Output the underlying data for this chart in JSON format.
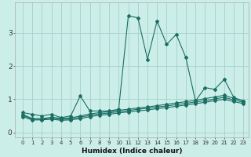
{
  "xlabel": "Humidex (Indice chaleur)",
  "bg_color": "#cceee8",
  "grid_color": "#aad4ce",
  "line_color": "#1a6e64",
  "x": [
    0,
    1,
    2,
    3,
    4,
    5,
    6,
    7,
    8,
    9,
    10,
    11,
    12,
    13,
    14,
    15,
    16,
    17,
    18,
    19,
    20,
    21,
    22,
    23
  ],
  "series1": [
    0.6,
    0.55,
    0.5,
    0.55,
    0.45,
    0.5,
    1.1,
    0.65,
    0.65,
    0.65,
    0.7,
    3.5,
    3.45,
    2.2,
    3.35,
    2.65,
    2.95,
    2.25,
    0.95,
    1.35,
    1.3,
    1.6,
    1.05,
    0.95
  ],
  "series2": [
    0.55,
    0.42,
    0.42,
    0.46,
    0.43,
    0.44,
    0.5,
    0.56,
    0.6,
    0.63,
    0.67,
    0.7,
    0.74,
    0.77,
    0.81,
    0.85,
    0.89,
    0.93,
    0.97,
    1.02,
    1.07,
    1.12,
    1.03,
    0.95
  ],
  "series3": [
    0.52,
    0.4,
    0.4,
    0.43,
    0.4,
    0.41,
    0.46,
    0.52,
    0.56,
    0.59,
    0.63,
    0.66,
    0.7,
    0.73,
    0.77,
    0.8,
    0.84,
    0.88,
    0.92,
    0.96,
    1.01,
    1.06,
    0.98,
    0.91
  ],
  "series4": [
    0.48,
    0.38,
    0.38,
    0.4,
    0.37,
    0.38,
    0.42,
    0.48,
    0.52,
    0.55,
    0.59,
    0.62,
    0.65,
    0.68,
    0.72,
    0.75,
    0.79,
    0.83,
    0.87,
    0.91,
    0.96,
    1.0,
    0.93,
    0.87
  ],
  "ylim": [
    -0.15,
    3.9
  ],
  "yticks": [
    0,
    1,
    2,
    3
  ],
  "xticks": [
    0,
    1,
    2,
    3,
    4,
    5,
    6,
    7,
    8,
    9,
    10,
    11,
    12,
    13,
    14,
    15,
    16,
    17,
    18,
    19,
    20,
    21,
    22,
    23
  ]
}
